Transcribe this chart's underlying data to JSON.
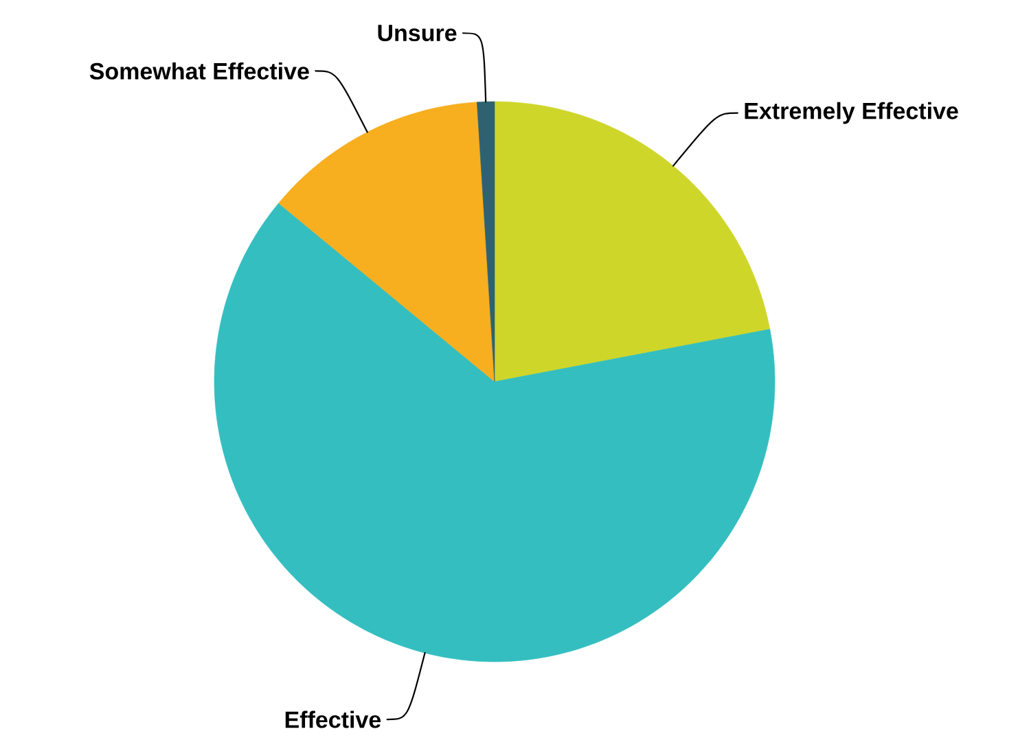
{
  "chart_data": {
    "type": "pie",
    "categories": [
      "Extremely Effective",
      "Effective",
      "Somewhat Effective",
      "Unsure"
    ],
    "values": [
      22,
      64,
      13,
      1
    ],
    "colors": [
      "#cfd62a",
      "#34bec0",
      "#f7ae1f",
      "#2e6270"
    ]
  }
}
